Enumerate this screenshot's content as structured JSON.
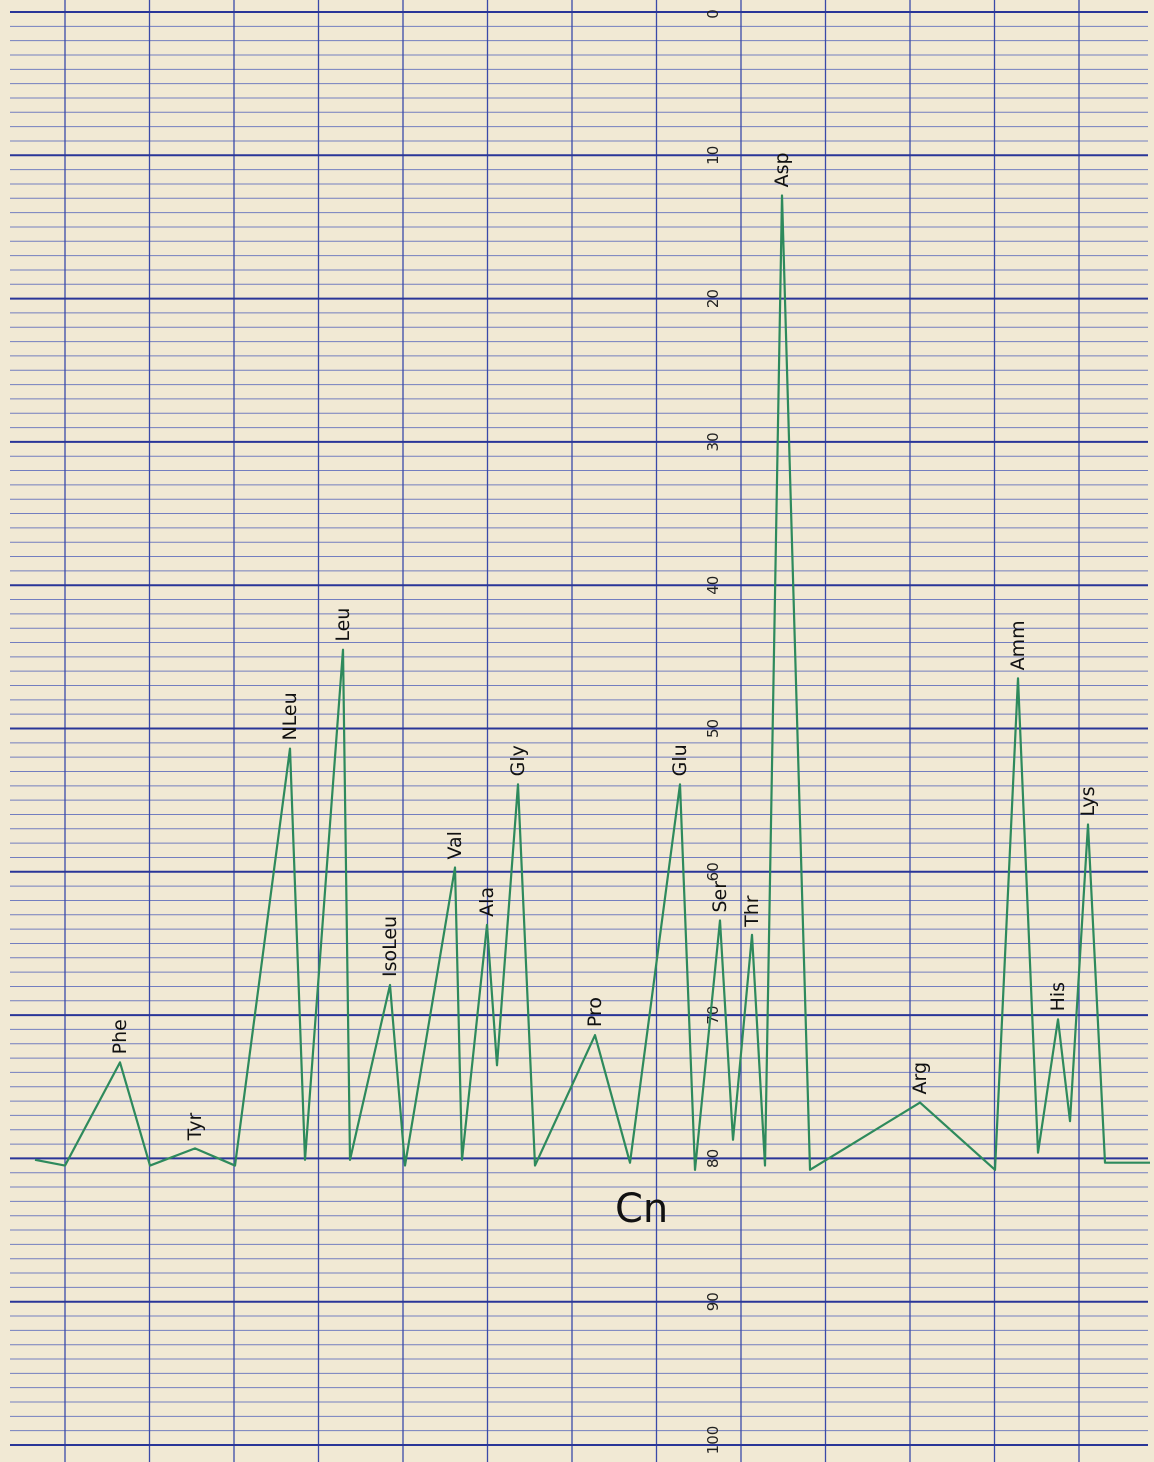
{
  "chart_data": {
    "type": "line",
    "categories": [
      null,
      null,
      "Phe",
      null,
      "Tyr",
      null,
      "NLeu",
      null,
      "Leu",
      null,
      "IsoLeu",
      null,
      "Val",
      null,
      "Ala",
      null,
      "Gly",
      null,
      "Pro",
      null,
      "Glu",
      null,
      "Ser",
      null,
      "Thr",
      null,
      "Asp",
      null,
      "Arg",
      null,
      "Amm",
      null,
      "His",
      null,
      "Lys",
      null,
      null
    ],
    "values": [
      80.1,
      80.5,
      73.3,
      80.5,
      79.3,
      80.5,
      51.4,
      80.1,
      44.5,
      80.1,
      67.9,
      80.5,
      59.7,
      80.1,
      63.7,
      73.5,
      53.9,
      80.5,
      71.4,
      80.3,
      53.9,
      80.8,
      63.4,
      78.7,
      64.4,
      80.5,
      12.8,
      80.8,
      76.1,
      80.8,
      46.5,
      79.6,
      70.3,
      77.4,
      56.7,
      80.3,
      80.3
    ],
    "color": "#2e8a5c",
    "ylim": [
      0,
      100
    ],
    "y_inverted": true,
    "yticks": [
      0,
      10,
      20,
      30,
      40,
      50,
      60,
      70,
      80,
      90,
      100
    ],
    "grid": true,
    "annotations": [
      "Cn"
    ]
  }
}
